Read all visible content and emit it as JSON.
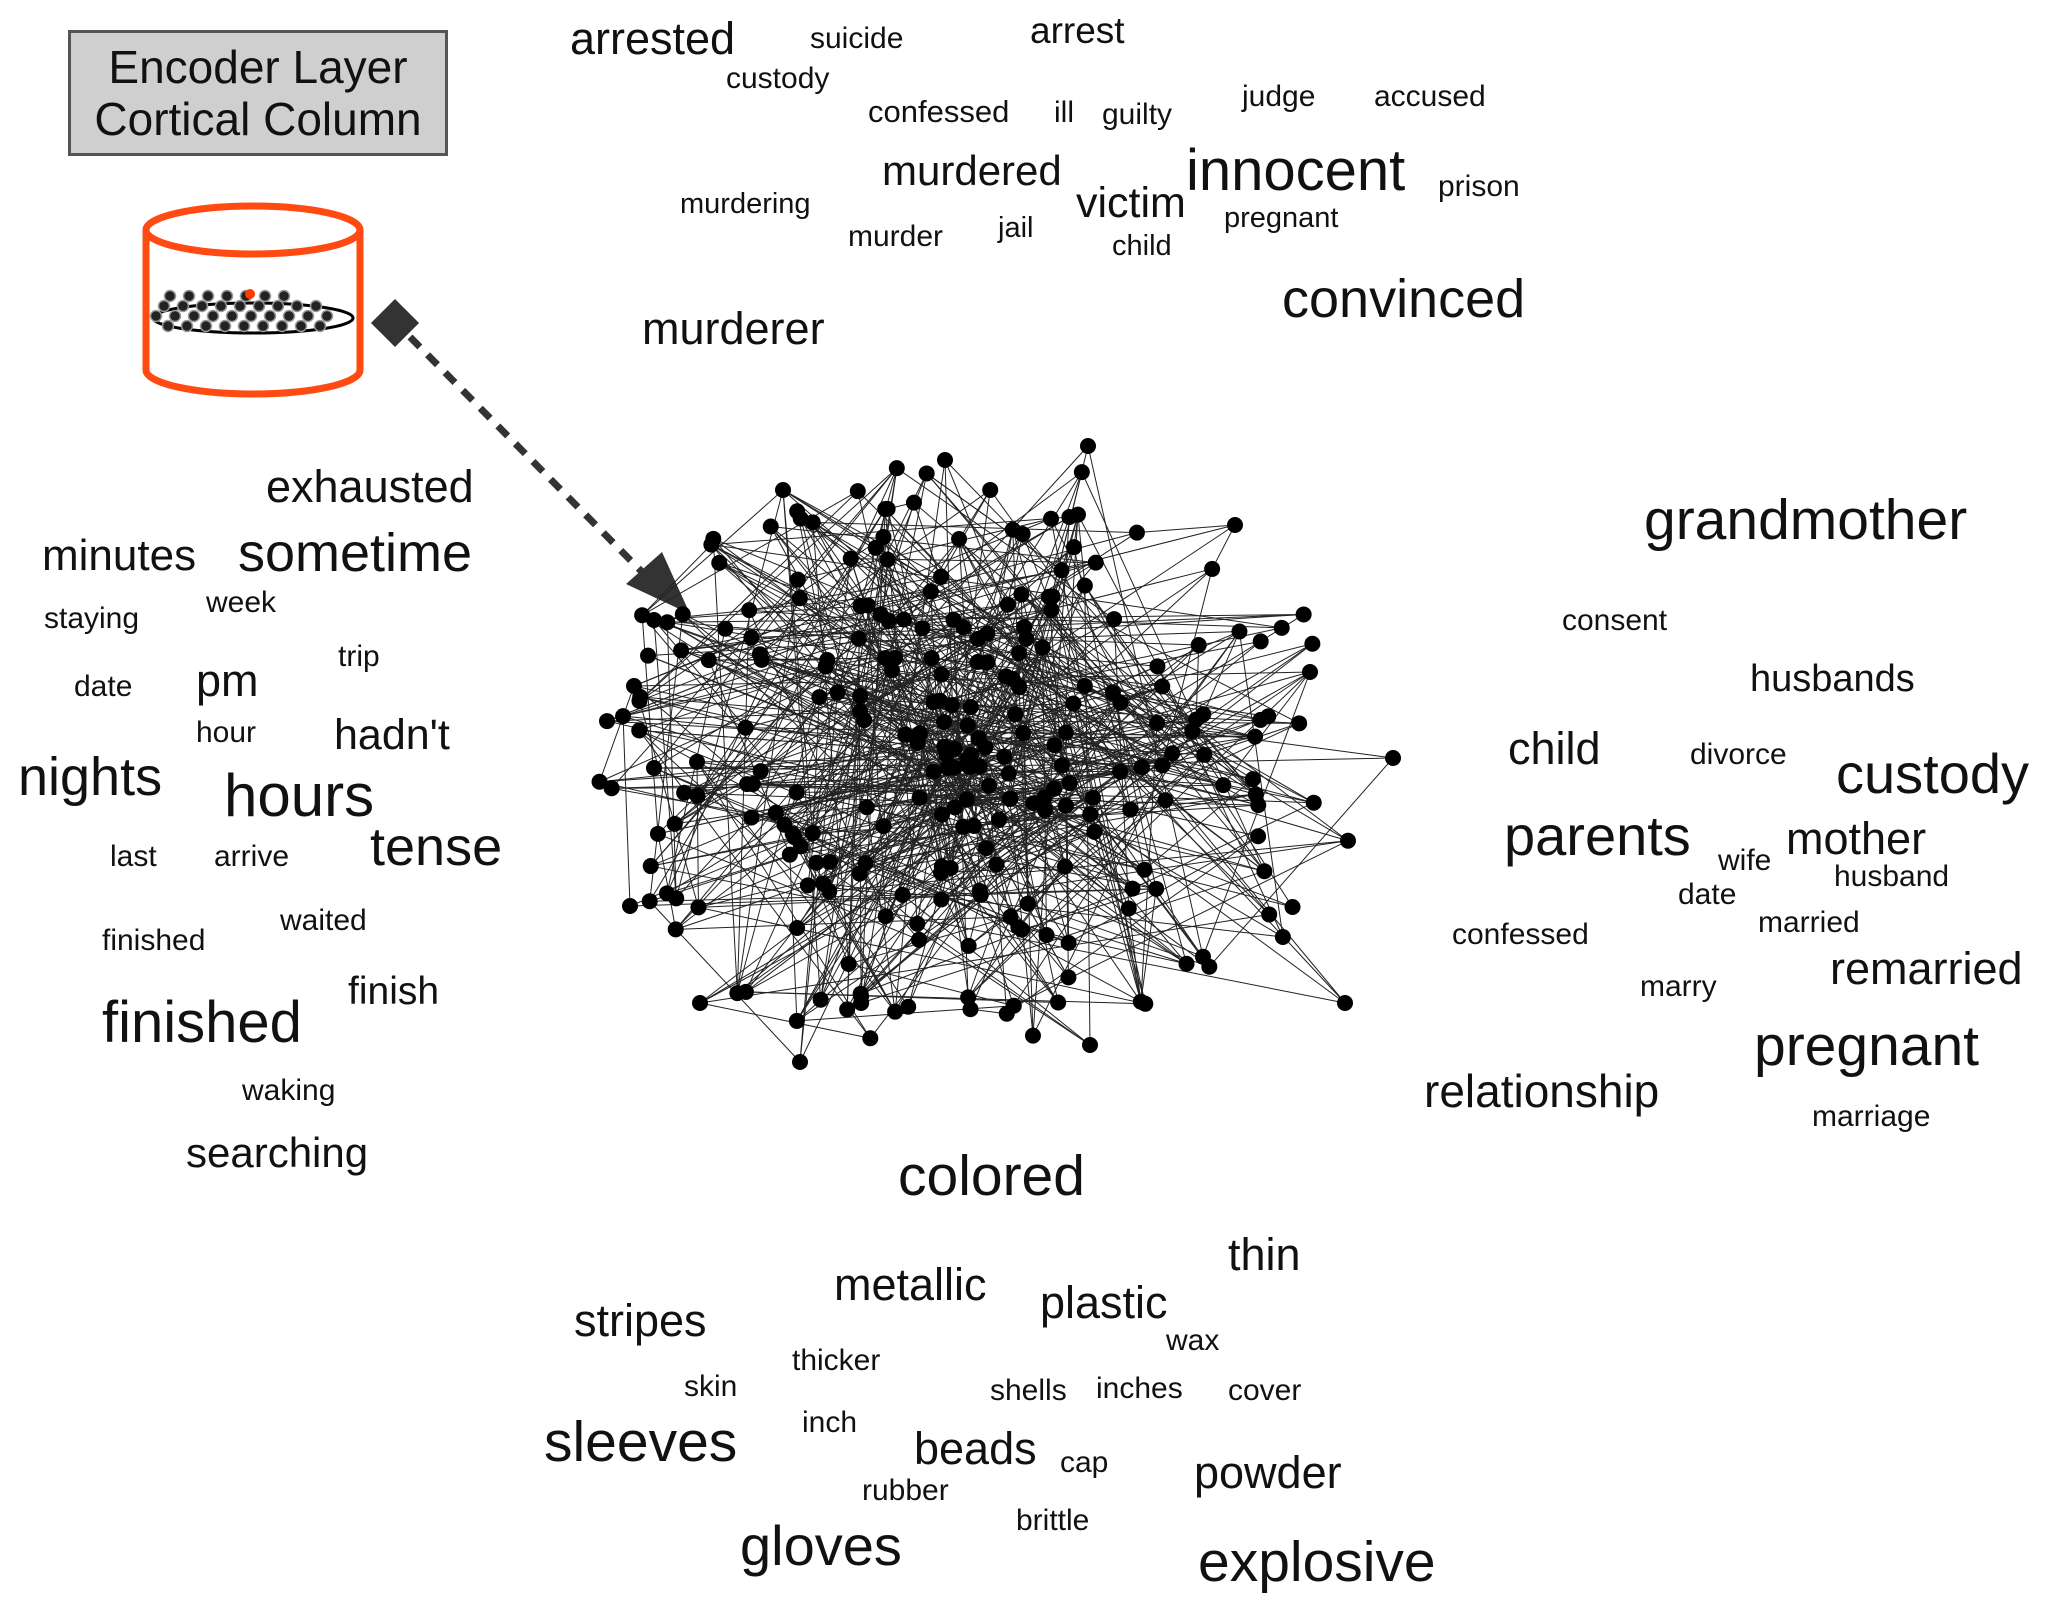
{
  "title": {
    "line1": "Encoder Layer",
    "line2": "Cortical Column"
  },
  "colors": {
    "column_outline": "#ff4a12",
    "arrow": "#333333",
    "node": "#000000",
    "edge": "#222222",
    "highlight_cell": "#ff3b00"
  },
  "icons": {
    "column": "cortical-column-icon",
    "arrow": "dashed-arrow-icon"
  },
  "network": {
    "node_count": 260
  },
  "clusters": {
    "crime": [
      {
        "text": "arrested"
      },
      {
        "text": "suicide"
      },
      {
        "text": "arrest"
      },
      {
        "text": "custody"
      },
      {
        "text": "confessed"
      },
      {
        "text": "ill"
      },
      {
        "text": "guilty"
      },
      {
        "text": "judge"
      },
      {
        "text": "accused"
      },
      {
        "text": "murdered"
      },
      {
        "text": "innocent"
      },
      {
        "text": "prison"
      },
      {
        "text": "murdering"
      },
      {
        "text": "victim"
      },
      {
        "text": "pregnant"
      },
      {
        "text": "murder"
      },
      {
        "text": "jail"
      },
      {
        "text": "child"
      },
      {
        "text": "convinced"
      },
      {
        "text": "murderer"
      }
    ],
    "time": [
      {
        "text": "exhausted"
      },
      {
        "text": "minutes"
      },
      {
        "text": "sometime"
      },
      {
        "text": "staying"
      },
      {
        "text": "week"
      },
      {
        "text": "trip"
      },
      {
        "text": "date"
      },
      {
        "text": "pm"
      },
      {
        "text": "hour"
      },
      {
        "text": "hadn't"
      },
      {
        "text": "nights"
      },
      {
        "text": "hours"
      },
      {
        "text": "last"
      },
      {
        "text": "arrive"
      },
      {
        "text": "tense"
      },
      {
        "text": "finished"
      },
      {
        "text": "waited"
      },
      {
        "text": "finish"
      },
      {
        "text": "finished"
      },
      {
        "text": "waking"
      },
      {
        "text": "searching"
      }
    ],
    "family": [
      {
        "text": "grandmother"
      },
      {
        "text": "consent"
      },
      {
        "text": "husbands"
      },
      {
        "text": "child"
      },
      {
        "text": "divorce"
      },
      {
        "text": "custody"
      },
      {
        "text": "parents"
      },
      {
        "text": "wife"
      },
      {
        "text": "mother"
      },
      {
        "text": "date"
      },
      {
        "text": "husband"
      },
      {
        "text": "confessed"
      },
      {
        "text": "married"
      },
      {
        "text": "remarried"
      },
      {
        "text": "marry"
      },
      {
        "text": "pregnant"
      },
      {
        "text": "relationship"
      },
      {
        "text": "marriage"
      }
    ],
    "materials": [
      {
        "text": "colored"
      },
      {
        "text": "thin"
      },
      {
        "text": "metallic"
      },
      {
        "text": "plastic"
      },
      {
        "text": "stripes"
      },
      {
        "text": "wax"
      },
      {
        "text": "thicker"
      },
      {
        "text": "skin"
      },
      {
        "text": "shells"
      },
      {
        "text": "inches"
      },
      {
        "text": "cover"
      },
      {
        "text": "inch"
      },
      {
        "text": "sleeves"
      },
      {
        "text": "beads"
      },
      {
        "text": "cap"
      },
      {
        "text": "powder"
      },
      {
        "text": "rubber"
      },
      {
        "text": "brittle"
      },
      {
        "text": "gloves"
      },
      {
        "text": "explosive"
      }
    ]
  }
}
